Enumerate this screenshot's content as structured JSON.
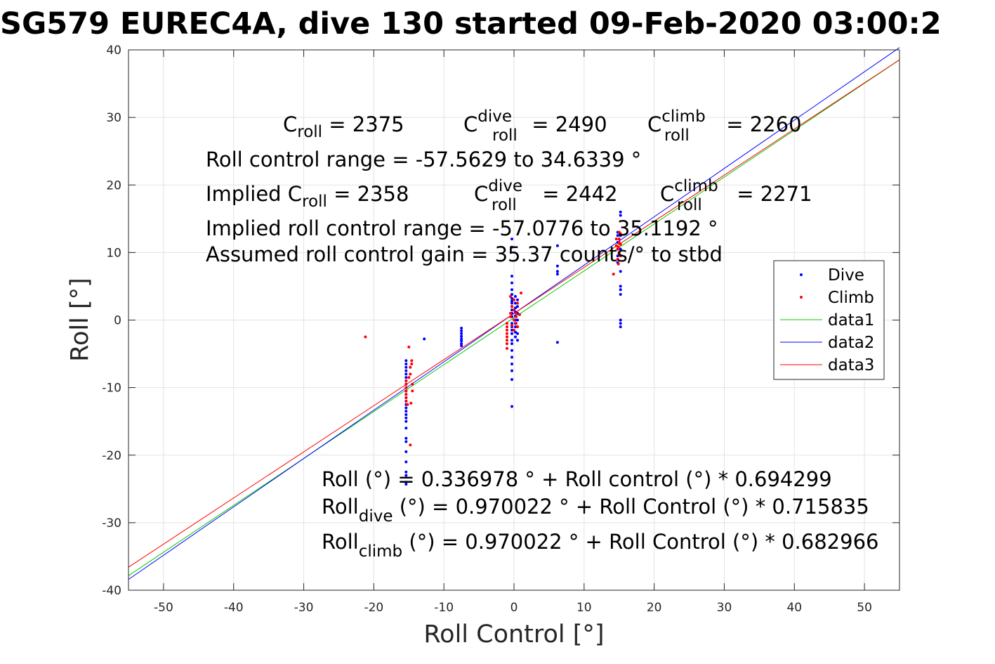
{
  "chart_data": {
    "type": "scatter",
    "title": "SG579 EUREC4A, dive 130 started 09-Feb-2020 03:00:2",
    "xlabel": "Roll Control [°]",
    "ylabel": "Roll [°]",
    "xlim": [
      -55,
      55
    ],
    "ylim": [
      -40,
      40
    ],
    "xticks": [
      -50,
      -40,
      -30,
      -20,
      -10,
      0,
      10,
      20,
      30,
      40,
      50
    ],
    "yticks": [
      -40,
      -30,
      -20,
      -10,
      0,
      10,
      20,
      30,
      40
    ],
    "grid": true,
    "legend_position": "right",
    "colors": {
      "dive": "#0000ff",
      "climb": "#ff0000",
      "data1": "#00cc00",
      "data2": "#0000ff",
      "data3": "#ff0000"
    },
    "series": [
      {
        "name": "Dive",
        "kind": "points",
        "x": [
          -15.4,
          -15.4,
          -15.4,
          -15.4,
          -15.4,
          -15.4,
          -15.4,
          -15.4,
          -15.4,
          -15.4,
          -15.4,
          -15.4,
          -15.4,
          -15.4,
          -15.4,
          -15.4,
          -15.4,
          -15.4,
          -15.4,
          -15.4,
          -15.4,
          -15.4,
          -15.4,
          -15.4,
          -15.4,
          -15.4,
          -15.4,
          -15.4,
          -12.8,
          -7.5,
          -7.5,
          -7.5,
          -7.5,
          -7.5,
          -7.5,
          -7.5,
          -7.5,
          -0.3,
          -0.3,
          -0.3,
          -0.3,
          -0.3,
          -0.3,
          -0.3,
          -0.3,
          -0.3,
          -0.3,
          -0.3,
          -0.3,
          -0.3,
          -0.3,
          -0.3,
          -0.3,
          -0.3,
          -0.3,
          -0.3,
          -0.3,
          -0.3,
          -0.3,
          -0.3,
          -0.3,
          -0.3,
          0.2,
          0.2,
          0.2,
          0.2,
          0.2,
          0.2,
          0.2,
          0.2,
          0.2,
          0.2,
          0.5,
          0.5,
          0.5,
          0.5,
          0.5,
          0.5,
          0.5,
          6.2,
          6.2,
          6.2,
          6.2,
          6.2,
          14.8,
          14.8,
          14.8,
          14.8,
          14.8,
          14.8,
          15.2,
          15.2,
          15.2,
          15.2,
          15.2,
          15.2,
          15.2,
          15.2,
          15.2,
          15.2,
          15.2
        ],
        "y": [
          -6.0,
          -6.5,
          -7.0,
          -8.5,
          -9.0,
          -10.5,
          -11.0,
          -12.0,
          -13.0,
          -14.0,
          -14.5,
          -16.0,
          -17.5,
          -18.0,
          -19.5,
          -21.0,
          -23.0,
          -24.0,
          -24.3,
          -9.5,
          -10.0,
          -11.5,
          -12.5,
          -8.0,
          -7.5,
          -13.5,
          -15.0,
          -22.5,
          -2.8,
          -1.2,
          -1.6,
          -2.0,
          -2.4,
          -2.8,
          -3.1,
          -3.5,
          -3.8,
          12.0,
          10.8,
          6.5,
          5.5,
          4.5,
          3.8,
          3.2,
          2.8,
          2.5,
          2.0,
          1.5,
          1.0,
          0.5,
          -0.5,
          -1.0,
          -1.5,
          -2.0,
          -3.0,
          -3.5,
          -4.5,
          -5.5,
          -6.5,
          -7.5,
          -8.8,
          -12.8,
          3.5,
          2.5,
          1.8,
          1.2,
          0.6,
          0.0,
          -0.5,
          -1.0,
          -1.8,
          -2.5,
          3.0,
          2.0,
          1.0,
          0.0,
          -1.0,
          -2.0,
          -3.0,
          11.0,
          8.0,
          7.2,
          6.8,
          -3.3,
          13.0,
          12.5,
          11.5,
          10.5,
          9.5,
          8.5,
          16.0,
          15.5,
          12.5,
          10.5,
          7.2,
          5.0,
          4.5,
          3.8,
          0.0,
          -0.5,
          -1.0
        ]
      },
      {
        "name": "Climb",
        "kind": "points",
        "x": [
          -21.2,
          -15.4,
          -15.4,
          -15.4,
          -15.4,
          -15.4,
          -15.4,
          -15.4,
          -15.2,
          -15.0,
          -14.8,
          -14.8,
          -14.6,
          -14.6,
          -14.5,
          -14.5,
          -14.8,
          -15.0,
          -14.7,
          -1.0,
          -1.0,
          -1.0,
          -1.0,
          -1.0,
          -1.0,
          -1.0,
          -1.0,
          -0.5,
          -0.5,
          -0.5,
          -0.3,
          -0.3,
          0.0,
          0.0,
          0.0,
          0.0,
          0.3,
          0.3,
          0.3,
          0.5,
          0.5,
          0.8,
          1.0,
          14.2,
          14.6,
          14.6,
          14.8,
          14.8,
          15.0,
          15.0,
          15.0,
          15.0,
          15.0,
          15.2,
          15.2,
          15.2,
          14.9,
          14.9
        ],
        "y": [
          -2.5,
          -9.0,
          -9.5,
          -10.0,
          -10.5,
          -11.0,
          -11.5,
          -12.0,
          -12.5,
          -8.5,
          -8.0,
          -7.0,
          -6.5,
          -6.0,
          -9.5,
          -10.5,
          -18.5,
          -4.0,
          -12.3,
          -0.5,
          -1.0,
          -1.5,
          -2.0,
          -2.5,
          -3.0,
          -3.5,
          -4.2,
          0.5,
          1.0,
          3.5,
          -0.8,
          2.0,
          3.0,
          0.0,
          -1.5,
          1.5,
          0.5,
          -0.5,
          1.0,
          2.5,
          -1.0,
          0.8,
          4.0,
          6.8,
          12.0,
          11.0,
          10.5,
          9.0,
          13.0,
          12.0,
          11.5,
          10.0,
          9.8,
          12.8,
          11.2,
          9.5,
          10.8,
          8.3
        ]
      },
      {
        "name": "data1",
        "kind": "line",
        "x": [
          -55,
          55
        ],
        "y": [
          -37.85,
          38.52
        ]
      },
      {
        "name": "data2",
        "kind": "line",
        "x": [
          -55,
          55
        ],
        "y": [
          -38.4,
          40.34
        ]
      },
      {
        "name": "data3",
        "kind": "line",
        "x": [
          -55,
          55
        ],
        "y": [
          -36.59,
          38.53
        ]
      }
    ],
    "legend": [
      "Dive",
      "Climb",
      "data1",
      "data2",
      "data3"
    ],
    "annotations": {
      "c_roll": {
        "base": "C",
        "sub": "roll",
        "value": " = 2375"
      },
      "c_roll_dive": {
        "base": "C",
        "sup": "dive",
        "sub": "roll",
        "value": " = 2490"
      },
      "c_roll_climb": {
        "base": "C",
        "sup": "climb",
        "sub": "roll",
        "value": " = 2260"
      },
      "range": "Roll control range = -57.5629 to 34.6339 °",
      "implied_prefix": "Implied ",
      "implied_c_roll": {
        "base": "C",
        "sub": "roll",
        "value": " = 2358"
      },
      "implied_c_roll_dive": {
        "base": "C",
        "sup": "dive",
        "sub": "roll",
        "value": " = 2442"
      },
      "implied_c_roll_climb": {
        "base": "C",
        "sup": "climb",
        "sub": "roll",
        "value": " = 2271"
      },
      "implied_range": "Implied roll control range = -57.0776 to 35.1192 °",
      "gain": "Assumed roll control gain = 35.37 counts/° to stbd",
      "fit_all": "Roll (°) = 0.336978 ° + Roll control (°) * 0.694299",
      "fit_dive": {
        "base": "Roll",
        "sub": "dive",
        "rest": " (°) = 0.970022 ° + Roll Control (°) * 0.715835"
      },
      "fit_climb": {
        "base": "Roll",
        "sub": "climb",
        "rest": " (°) = 0.970022 ° + Roll Control (°) * 0.682966"
      }
    }
  }
}
